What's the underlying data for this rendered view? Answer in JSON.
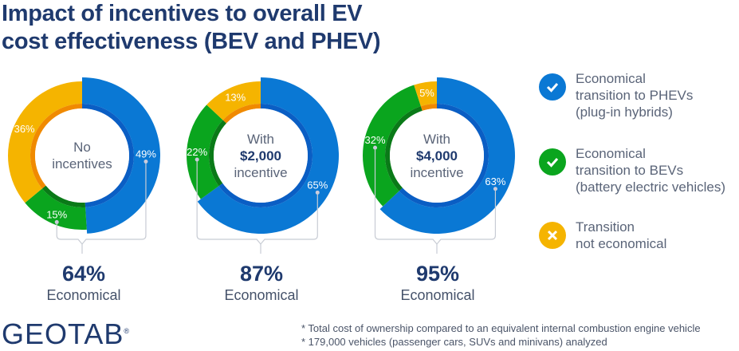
{
  "title": [
    "Impact of incentives to overall EV",
    "cost effectiveness (BEV and PHEV)"
  ],
  "colors": {
    "phev": "#0a78d4",
    "phev_dark": "#0a5ec4",
    "bev": "#0aa51e",
    "bev_dark": "#0a7a18",
    "none": "#f5b400",
    "none_dark": "#f08a00"
  },
  "chart_data": [
    {
      "type": "pie",
      "center_label": [
        "No",
        "incentives"
      ],
      "center_bold": "",
      "values": {
        "phev": 49,
        "bev": 15,
        "none": 36
      },
      "total_label": "64%",
      "total_caption": "Economical"
    },
    {
      "type": "pie",
      "center_label": [
        "With",
        "incentive"
      ],
      "center_bold": "$2,000",
      "values": {
        "phev": 65,
        "bev": 22,
        "none": 13
      },
      "total_label": "87%",
      "total_caption": "Economical"
    },
    {
      "type": "pie",
      "center_label": [
        "With",
        "incentive"
      ],
      "center_bold": "$4,000",
      "values": {
        "phev": 63,
        "bev": 32,
        "none": 5
      },
      "total_label": "95%",
      "total_caption": "Economical"
    }
  ],
  "legend": [
    {
      "icon": "check-icon",
      "color": "#0a78d4",
      "text": "Economical\ntransition to PHEVs\n(plug-in hybrids)"
    },
    {
      "icon": "check-icon",
      "color": "#0aa51e",
      "text": "Economical\ntransition to BEVs\n(battery electric vehicles)"
    },
    {
      "icon": "x-icon",
      "color": "#f5b400",
      "text": "Transition\nnot economical"
    }
  ],
  "logo": "GEOTAB",
  "logo_mark": "®",
  "footnotes": [
    "* Total cost of ownership compared to an equivalent internal combustion engine vehicle",
    "* 179,000 vehicles (passenger cars, SUVs and minivans) analyzed"
  ]
}
